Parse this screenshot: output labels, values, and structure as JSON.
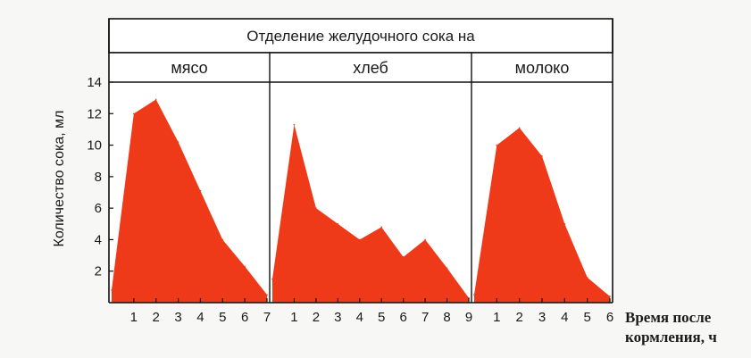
{
  "chart_data": {
    "type": "area",
    "title": "Отделение  желудочного сока на",
    "ylabel": "Количество сока, мл",
    "xlabel": "Время после кормления, ч",
    "xlabel_lines": [
      "Время после",
      "кормления, ч"
    ],
    "y_ticks": [
      "2",
      "4",
      "6",
      "8",
      "10",
      "12",
      "14"
    ],
    "ylim": [
      0,
      14
    ],
    "grid": false,
    "fill_color": "#ef3a1a",
    "panels": [
      {
        "name": "мясо",
        "x_ticks": [
          "1",
          "2",
          "3",
          "4",
          "5",
          "6",
          "7"
        ],
        "x": [
          0,
          1,
          2,
          3,
          4,
          5,
          6,
          7
        ],
        "y": [
          0.8,
          12.0,
          12.9,
          10.2,
          7.1,
          4.0,
          2.3,
          0.5
        ]
      },
      {
        "name": "хлеб",
        "x_ticks": [
          "1",
          "2",
          "3",
          "4",
          "5",
          "6",
          "7",
          "8",
          "9"
        ],
        "x": [
          0,
          1,
          2,
          3,
          4,
          5,
          6,
          7,
          8,
          9
        ],
        "y": [
          1.5,
          11.3,
          6.0,
          5.0,
          4.0,
          4.8,
          2.9,
          4.0,
          2.2,
          0.3
        ]
      },
      {
        "name": "молоко",
        "x_ticks": [
          "1",
          "2",
          "3",
          "4",
          "5",
          "6"
        ],
        "x": [
          0,
          1,
          2,
          3,
          4,
          5,
          6
        ],
        "y": [
          0.5,
          10.0,
          11.1,
          9.3,
          5.0,
          1.6,
          0.4
        ]
      }
    ]
  }
}
